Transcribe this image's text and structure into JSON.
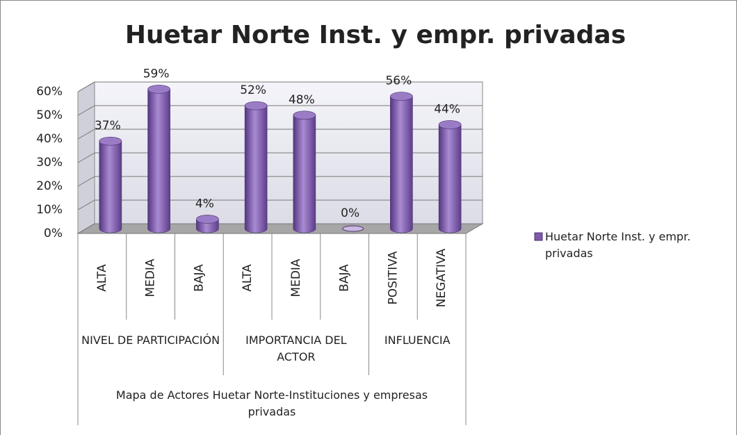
{
  "chart_data": {
    "type": "bar",
    "title": "Huetar Norte Inst. y empr. privadas",
    "axis_group_label": "Mapa de Actores Huetar Norte-Instituciones y empresas privadas",
    "groups": [
      {
        "name": "NIVEL DE PARTICIPACIÓN",
        "categories": [
          "ALTA",
          "MEDIA",
          "BAJA"
        ]
      },
      {
        "name": "IMPORTANCIA DEL ACTOR",
        "categories": [
          "ALTA",
          "MEDIA",
          "BAJA"
        ]
      },
      {
        "name": "INFLUENCIA",
        "categories": [
          "POSITIVA",
          "NEGATIVA"
        ]
      }
    ],
    "series": [
      {
        "name": "Huetar Norte Inst. y empr. privadas",
        "color": "#7f5aa8",
        "values": [
          37,
          59,
          4,
          52,
          48,
          0,
          56,
          44
        ],
        "value_labels": [
          "37%",
          "59%",
          "4%",
          "52%",
          "48%",
          "0%",
          "56%",
          "44%"
        ]
      }
    ],
    "ylim": [
      0,
      60
    ],
    "yticks": [
      {
        "value": 0,
        "label": "0%"
      },
      {
        "value": 10,
        "label": "10%"
      },
      {
        "value": 20,
        "label": "20%"
      },
      {
        "value": 30,
        "label": "30%"
      },
      {
        "value": 40,
        "label": "40%"
      },
      {
        "value": 50,
        "label": "50%"
      },
      {
        "value": 60,
        "label": "60%"
      }
    ],
    "grid": true,
    "legend": "right"
  }
}
